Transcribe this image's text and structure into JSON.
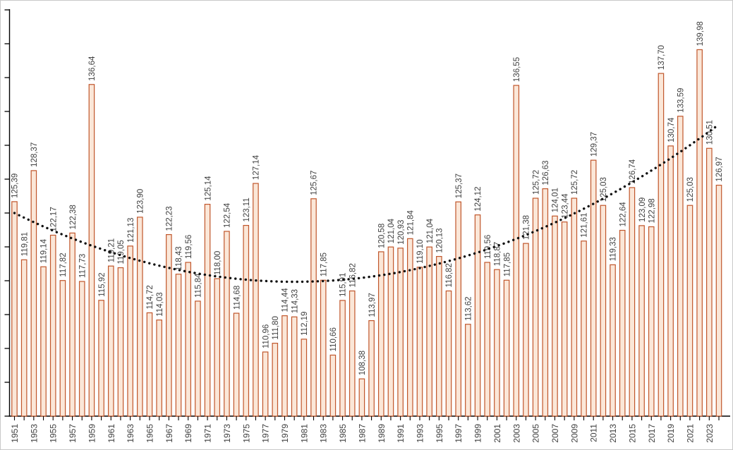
{
  "chart_data": {
    "type": "bar",
    "title": "",
    "xlabel": "",
    "ylabel": "",
    "decimal_separator": ",",
    "grid": false,
    "legend": null,
    "x": [
      1951,
      1952,
      1953,
      1954,
      1955,
      1956,
      1957,
      1958,
      1959,
      1960,
      1961,
      1962,
      1963,
      1964,
      1965,
      1966,
      1967,
      1968,
      1969,
      1970,
      1971,
      1972,
      1973,
      1974,
      1975,
      1976,
      1977,
      1978,
      1979,
      1980,
      1981,
      1982,
      1983,
      1984,
      1985,
      1986,
      1987,
      1988,
      1989,
      1990,
      1991,
      1992,
      1993,
      1994,
      1995,
      1996,
      1997,
      1998,
      1999,
      2000,
      2001,
      2002,
      2003,
      2004,
      2005,
      2006,
      2007,
      2008,
      2009,
      2010,
      2011,
      2012,
      2013,
      2014,
      2015,
      2016,
      2017,
      2018,
      2019,
      2020,
      2021,
      2022,
      2023,
      2024
    ],
    "values": [
      125.39,
      119.81,
      128.37,
      119.14,
      122.17,
      117.82,
      122.38,
      117.73,
      136.64,
      115.92,
      119.21,
      119.05,
      121.13,
      123.9,
      114.72,
      114.03,
      122.23,
      118.43,
      119.56,
      115.84,
      125.14,
      118.0,
      122.54,
      114.68,
      123.11,
      127.14,
      110.96,
      111.8,
      114.44,
      114.33,
      112.19,
      125.67,
      117.85,
      110.66,
      115.91,
      116.82,
      108.38,
      113.97,
      120.58,
      121.04,
      120.93,
      121.84,
      119.1,
      121.04,
      120.13,
      116.82,
      125.37,
      113.62,
      124.12,
      119.56,
      118.87,
      117.85,
      136.55,
      121.38,
      125.72,
      126.63,
      124.01,
      123.44,
      125.72,
      121.61,
      129.37,
      125.03,
      119.33,
      122.64,
      126.74,
      123.09,
      122.98,
      137.7,
      130.74,
      133.59,
      125.03,
      139.98,
      130.51,
      126.97
    ],
    "x_tick_labels": [
      "1951",
      "1953",
      "1955",
      "1957",
      "1959",
      "1961",
      "1963",
      "1965",
      "1967",
      "1969",
      "1971",
      "1973",
      "1975",
      "1977",
      "1979",
      "1981",
      "1983",
      "1985",
      "1987",
      "1989",
      "1991",
      "1993",
      "1995",
      "1997",
      "1999",
      "2001",
      "2003",
      "2005",
      "2007",
      "2009",
      "2011",
      "2013",
      "2015",
      "2017",
      "2019",
      "2021",
      "2023"
    ],
    "y_axis": {
      "labels_visible": false,
      "tick_count": 13,
      "ylim_estimated": [
        104.8,
        143.8
      ]
    },
    "trend": {
      "style": "dotted",
      "start_value": 124.3,
      "min_value": 117.7,
      "min_year": 1980,
      "end_value": 132.8
    },
    "colors": {
      "bar_fill": "#FBE7D8",
      "bar_border": "#C0562B",
      "value_label": "#404040",
      "axis": "#000000",
      "tick_label": "#404040",
      "trend": "#111111",
      "frame_border": "#c9c9c9"
    }
  }
}
